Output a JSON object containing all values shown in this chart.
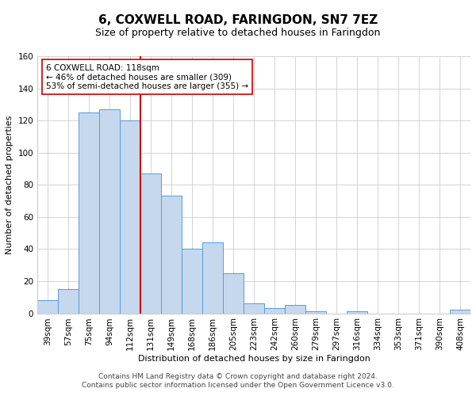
{
  "title": "6, COXWELL ROAD, FARINGDON, SN7 7EZ",
  "subtitle": "Size of property relative to detached houses in Faringdon",
  "xlabel": "Distribution of detached houses by size in Faringdon",
  "ylabel": "Number of detached properties",
  "bar_labels": [
    "39sqm",
    "57sqm",
    "75sqm",
    "94sqm",
    "112sqm",
    "131sqm",
    "149sqm",
    "168sqm",
    "186sqm",
    "205sqm",
    "223sqm",
    "242sqm",
    "260sqm",
    "279sqm",
    "297sqm",
    "316sqm",
    "334sqm",
    "353sqm",
    "371sqm",
    "390sqm",
    "408sqm"
  ],
  "bar_values": [
    8,
    15,
    125,
    127,
    120,
    87,
    73,
    40,
    44,
    25,
    6,
    3,
    5,
    1,
    0,
    1,
    0,
    0,
    0,
    0,
    2
  ],
  "bar_color": "#c5d8ed",
  "bar_edge_color": "#5b9bd5",
  "vline_x_index": 4,
  "vline_color": "#cc0000",
  "annotation_line1": "6 COXWELL ROAD: 118sqm",
  "annotation_line2": "← 46% of detached houses are smaller (309)",
  "annotation_line3": "53% of semi-detached houses are larger (355) →",
  "annotation_box_edge_color": "#cc0000",
  "annotation_box_face_color": "#ffffff",
  "ylim": [
    0,
    160
  ],
  "yticks": [
    0,
    20,
    40,
    60,
    80,
    100,
    120,
    140,
    160
  ],
  "footer_line1": "Contains HM Land Registry data © Crown copyright and database right 2024.",
  "footer_line2": "Contains public sector information licensed under the Open Government Licence v3.0.",
  "bg_color": "#ffffff",
  "grid_color": "#cccccc",
  "title_fontsize": 11,
  "subtitle_fontsize": 9,
  "axis_label_fontsize": 8,
  "tick_label_fontsize": 7.5,
  "annotation_fontsize": 7.5,
  "footer_fontsize": 6.5
}
